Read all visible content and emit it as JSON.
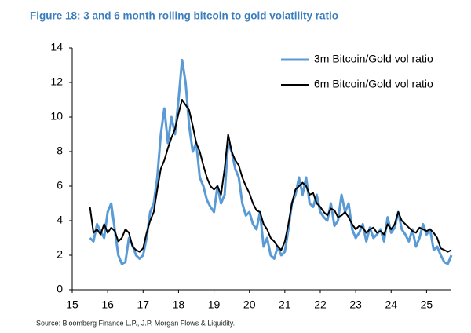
{
  "chart_data": {
    "type": "line",
    "title": "Figure 18: 3 and 6 month rolling bitcoin to gold volatility ratio",
    "source": "Source: Bloomberg Finance L.P., J.P. Morgan Flows & Liquidity.",
    "x": [
      15.5,
      15.6,
      15.7,
      15.8,
      15.9,
      16.0,
      16.1,
      16.2,
      16.3,
      16.4,
      16.5,
      16.6,
      16.7,
      16.8,
      16.9,
      17.0,
      17.1,
      17.2,
      17.3,
      17.4,
      17.5,
      17.6,
      17.7,
      17.8,
      17.9,
      18.0,
      18.1,
      18.2,
      18.3,
      18.4,
      18.5,
      18.6,
      18.7,
      18.8,
      18.9,
      19.0,
      19.1,
      19.2,
      19.3,
      19.4,
      19.5,
      19.6,
      19.7,
      19.8,
      19.9,
      20.0,
      20.1,
      20.2,
      20.3,
      20.4,
      20.5,
      20.6,
      20.7,
      20.8,
      20.9,
      21.0,
      21.1,
      21.2,
      21.3,
      21.4,
      21.5,
      21.6,
      21.7,
      21.8,
      21.9,
      22.0,
      22.1,
      22.2,
      22.3,
      22.4,
      22.5,
      22.6,
      22.7,
      22.8,
      22.9,
      23.0,
      23.1,
      23.2,
      23.3,
      23.4,
      23.5,
      23.6,
      23.7,
      23.8,
      23.9,
      24.0,
      24.1,
      24.2,
      24.3,
      24.4,
      24.5,
      24.6,
      24.7,
      24.8,
      24.9,
      25.0,
      25.1,
      25.2,
      25.3,
      25.4,
      25.5,
      25.6,
      25.7
    ],
    "series": [
      {
        "name": "3m Bitcoin/Gold vol ratio",
        "color": "#5b9bd5",
        "width": 3,
        "values": [
          3.0,
          2.8,
          3.8,
          3.4,
          3.0,
          4.5,
          5.0,
          3.5,
          2.0,
          1.5,
          1.6,
          3.0,
          2.6,
          2.0,
          1.8,
          2.0,
          3.0,
          4.5,
          5.0,
          6.5,
          9.0,
          10.5,
          8.5,
          10.0,
          9.0,
          11.0,
          13.3,
          12.0,
          9.5,
          8.0,
          8.5,
          6.5,
          6.0,
          5.2,
          4.8,
          4.5,
          6.0,
          5.0,
          5.5,
          8.5,
          8.0,
          7.0,
          6.5,
          5.0,
          4.3,
          4.5,
          3.8,
          3.5,
          4.5,
          2.5,
          3.0,
          2.0,
          1.8,
          2.5,
          2.0,
          2.2,
          3.5,
          5.0,
          5.5,
          6.5,
          5.5,
          6.5,
          5.0,
          4.8,
          5.5,
          4.5,
          4.2,
          4.0,
          5.0,
          3.7,
          4.0,
          5.5,
          4.5,
          5.0,
          3.5,
          3.0,
          3.3,
          3.8,
          2.8,
          3.6,
          3.0,
          3.2,
          3.5,
          2.8,
          4.2,
          3.3,
          3.6,
          4.5,
          3.5,
          3.2,
          2.8,
          3.5,
          2.5,
          3.0,
          3.8,
          3.2,
          3.5,
          2.3,
          2.5,
          2.0,
          1.6,
          1.5,
          2.0
        ]
      },
      {
        "name": "6m Bitcoin/Gold vol ratio",
        "color": "#000000",
        "width": 2,
        "values": [
          4.8,
          3.3,
          3.5,
          3.2,
          3.8,
          3.3,
          3.6,
          3.4,
          2.8,
          3.0,
          3.5,
          3.3,
          2.5,
          2.3,
          2.2,
          2.4,
          3.3,
          4.0,
          4.5,
          5.8,
          7.0,
          7.5,
          8.2,
          8.8,
          9.3,
          10.2,
          11.0,
          10.7,
          10.4,
          9.5,
          8.5,
          8.0,
          7.2,
          6.5,
          6.0,
          5.8,
          6.0,
          5.5,
          7.0,
          9.0,
          8.0,
          7.5,
          7.2,
          6.5,
          6.0,
          5.6,
          5.0,
          4.6,
          4.5,
          3.8,
          3.5,
          3.0,
          2.8,
          2.5,
          2.3,
          2.8,
          3.8,
          5.0,
          5.8,
          6.0,
          6.2,
          6.0,
          5.5,
          5.6,
          5.0,
          4.8,
          4.5,
          4.3,
          4.7,
          4.6,
          4.2,
          4.3,
          4.5,
          4.2,
          3.8,
          3.5,
          3.7,
          3.6,
          3.3,
          3.5,
          3.6,
          3.3,
          3.4,
          3.2,
          3.8,
          3.5,
          3.8,
          4.5,
          4.0,
          3.8,
          3.6,
          3.4,
          3.3,
          3.6,
          3.5,
          3.4,
          3.5,
          3.3,
          3.0,
          2.4,
          2.3,
          2.2,
          2.3
        ]
      }
    ],
    "xlim": [
      15,
      25.7
    ],
    "xticks": [
      15,
      16,
      17,
      18,
      19,
      20,
      21,
      22,
      23,
      24,
      25
    ],
    "ylim": [
      0,
      14
    ],
    "yticks": [
      0,
      2,
      4,
      6,
      8,
      10,
      12,
      14
    ],
    "grid": false,
    "legend": "top-right"
  }
}
